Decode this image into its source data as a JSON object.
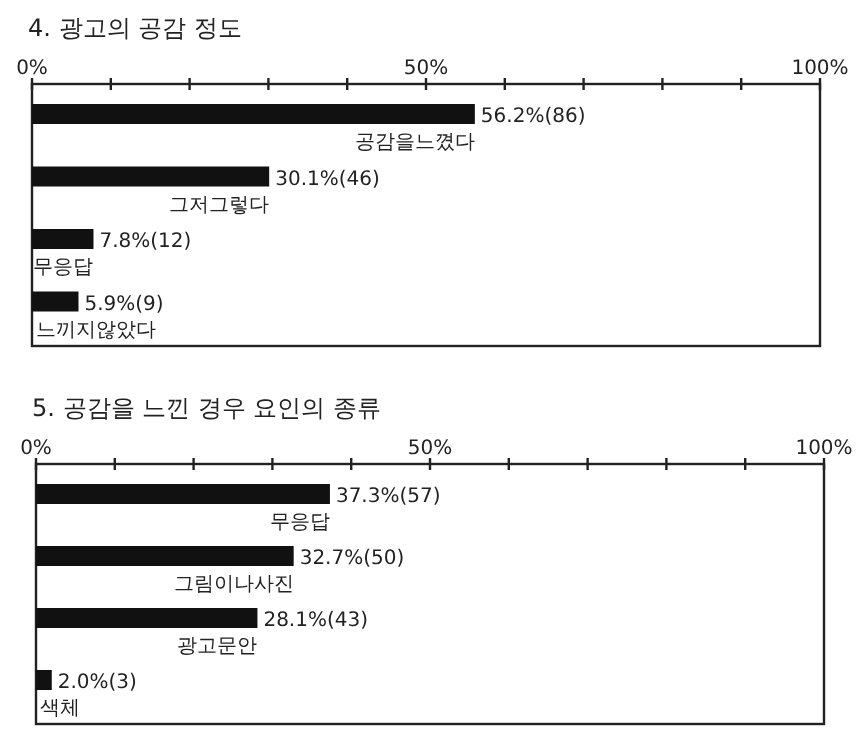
{
  "chart_data": [
    {
      "type": "bar",
      "orientation": "horizontal",
      "title": "4. 광고의 공감 정도",
      "categories": [
        "공감을느꼈다",
        "그저그렇다",
        "무응답",
        "느끼지않았다"
      ],
      "values": [
        56.2,
        30.1,
        7.8,
        5.9
      ],
      "value_labels": [
        "56.2%(86)",
        "30.1%(46)",
        "7.8%(12)",
        "5.9%(9)"
      ],
      "color": "#111111",
      "xlim": [
        0,
        100
      ],
      "xticks": [
        {
          "value": 0,
          "label": "0%"
        },
        {
          "value": 10,
          "label": null
        },
        {
          "value": 20,
          "label": null
        },
        {
          "value": 30,
          "label": null
        },
        {
          "value": 40,
          "label": null
        },
        {
          "value": 50,
          "label": "50%"
        },
        {
          "value": 60,
          "label": null
        },
        {
          "value": 70,
          "label": null
        },
        {
          "value": 80,
          "label": null
        },
        {
          "value": 90,
          "label": null
        },
        {
          "value": 100,
          "label": "100%"
        }
      ]
    },
    {
      "type": "bar",
      "orientation": "horizontal",
      "title": "5. 공감을 느낀 경우 요인의 종류",
      "categories": [
        "무응답",
        "그림이나사진",
        "광고문안",
        "색체"
      ],
      "values": [
        37.3,
        32.7,
        28.1,
        2.0
      ],
      "value_labels": [
        "37.3%(57)",
        "32.7%(50)",
        "28.1%(43)",
        "2.0%(3)"
      ],
      "color": "#111111",
      "xlim": [
        0,
        100
      ],
      "xticks": [
        {
          "value": 0,
          "label": "0%"
        },
        {
          "value": 10,
          "label": null
        },
        {
          "value": 20,
          "label": null
        },
        {
          "value": 30,
          "label": null
        },
        {
          "value": 40,
          "label": null
        },
        {
          "value": 50,
          "label": "50%"
        },
        {
          "value": 60,
          "label": null
        },
        {
          "value": 70,
          "label": null
        },
        {
          "value": 80,
          "label": null
        },
        {
          "value": 90,
          "label": null
        },
        {
          "value": 100,
          "label": "100%"
        }
      ]
    }
  ]
}
